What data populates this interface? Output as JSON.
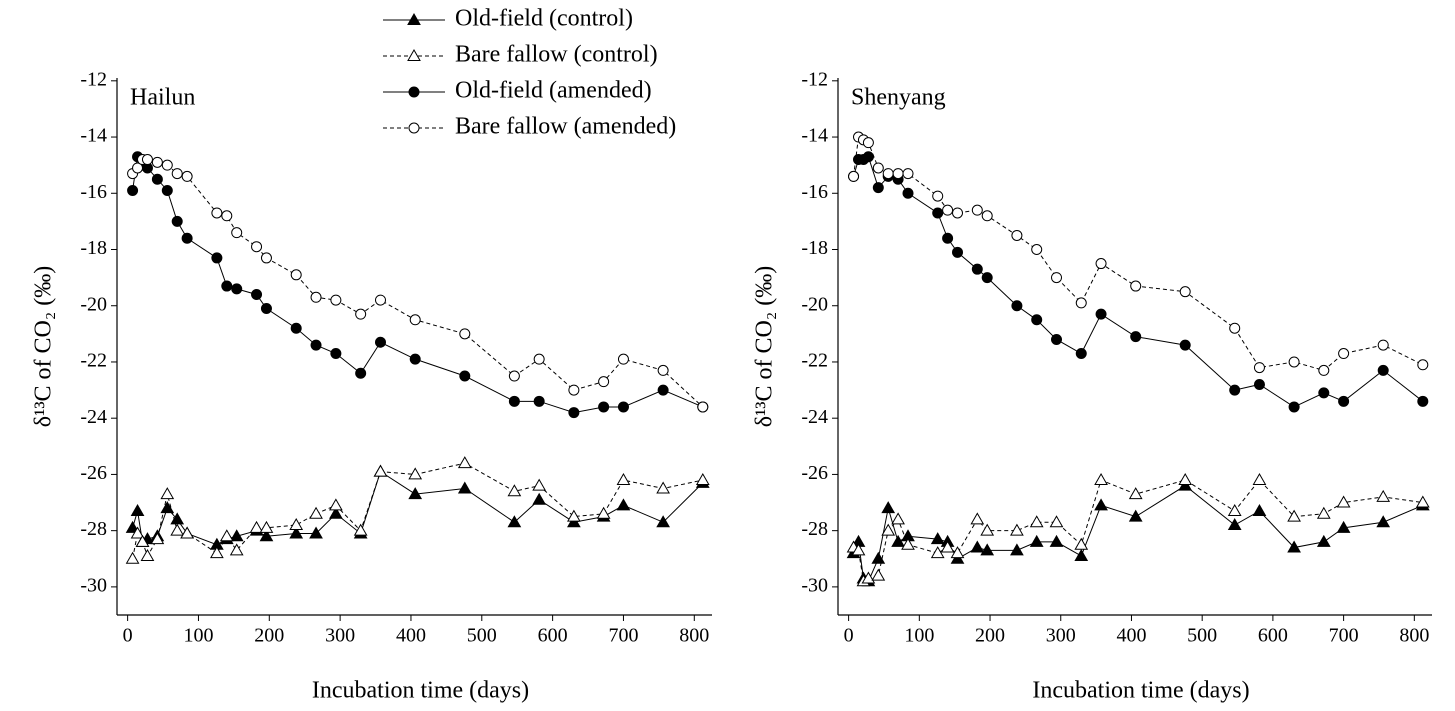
{
  "chart_data": [
    {
      "type": "line",
      "title": "Hailun",
      "x_label": "Incubation time (days)",
      "y_label": "δ¹³C of CO₂ (‰)",
      "legend": "top",
      "x": [
        7,
        14,
        21,
        28,
        42,
        56,
        70,
        84,
        126,
        140,
        154,
        182,
        196,
        238,
        266,
        294,
        329,
        357,
        406,
        476,
        546,
        581,
        630,
        672,
        700,
        756,
        812
      ],
      "xlim": [
        -15,
        825
      ],
      "xticks": [
        0,
        100,
        200,
        300,
        400,
        500,
        600,
        700,
        800
      ],
      "ylim": [
        -31,
        -11.9
      ],
      "yticks": [
        -30,
        -28,
        -26,
        -24,
        -22,
        -20,
        -18,
        -16,
        -14,
        -12
      ],
      "series": [
        {
          "name": "Old-field (control)",
          "color": "#000000",
          "marker": "triangle",
          "filled": true,
          "dashed": false,
          "values": [
            -27.9,
            -27.3,
            -28.4,
            -28.3,
            -28.2,
            -27.2,
            -27.6,
            -28.1,
            -28.5,
            -28.3,
            -28.2,
            -28.0,
            -28.2,
            -28.1,
            -28.1,
            -27.4,
            -28.1,
            -25.9,
            -26.7,
            -26.5,
            -27.7,
            -26.9,
            -27.7,
            -27.5,
            -27.1,
            -27.7,
            -26.3
          ]
        },
        {
          "name": "Bare fallow (control)",
          "color": "#000000",
          "marker": "triangle",
          "filled": false,
          "dashed": true,
          "values": [
            -29.0,
            -28.1,
            -28.4,
            -28.9,
            -28.3,
            -26.7,
            -28.0,
            -28.1,
            -28.8,
            -28.2,
            -28.7,
            -27.9,
            -27.9,
            -27.8,
            -27.4,
            -27.1,
            -28.0,
            -25.9,
            -26.0,
            -25.6,
            -26.6,
            -26.4,
            -27.5,
            -27.4,
            -26.2,
            -26.5,
            -26.2
          ]
        },
        {
          "name": "Old-field (amended)",
          "color": "#000000",
          "marker": "circle",
          "filled": true,
          "dashed": false,
          "values": [
            -15.9,
            -14.7,
            -15.0,
            -15.1,
            -15.5,
            -15.9,
            -17.0,
            -17.6,
            -18.3,
            -19.3,
            -19.4,
            -19.6,
            -20.1,
            -20.8,
            -21.4,
            -21.7,
            -22.4,
            -21.3,
            -21.9,
            -22.5,
            -23.4,
            -23.4,
            -23.8,
            -23.6,
            -23.6,
            -23.0,
            -23.6
          ]
        },
        {
          "name": "Bare fallow (amended)",
          "color": "#000000",
          "marker": "circle",
          "filled": false,
          "dashed": true,
          "values": [
            -15.3,
            -15.1,
            -14.8,
            -14.8,
            -14.9,
            -15.0,
            -15.3,
            -15.4,
            -16.7,
            -16.8,
            -17.4,
            -17.9,
            -18.3,
            -18.9,
            -19.7,
            -19.8,
            -20.3,
            -19.8,
            -20.5,
            -21.0,
            -22.5,
            -21.9,
            -23.0,
            -22.7,
            -21.9,
            -22.3,
            -23.6
          ]
        }
      ]
    },
    {
      "type": "line",
      "title": "Shenyang",
      "x_label": "Incubation time (days)",
      "y_label": "δ¹³C of CO₂ (‰)",
      "x": [
        7,
        14,
        21,
        28,
        42,
        56,
        70,
        84,
        126,
        140,
        154,
        182,
        196,
        238,
        266,
        294,
        329,
        357,
        406,
        476,
        546,
        581,
        630,
        672,
        700,
        756,
        812
      ],
      "xlim": [
        -15,
        825
      ],
      "xticks": [
        0,
        100,
        200,
        300,
        400,
        500,
        600,
        700,
        800
      ],
      "ylim": [
        -31,
        -11.9
      ],
      "yticks": [
        -30,
        -28,
        -26,
        -24,
        -22,
        -20,
        -18,
        -16,
        -14,
        -12
      ],
      "series": [
        {
          "color": "#000000",
          "marker": "triangle",
          "filled": true,
          "dashed": false,
          "values": [
            -28.8,
            -28.4,
            -29.7,
            -29.8,
            -29.0,
            -27.2,
            -28.4,
            -28.2,
            -28.3,
            -28.4,
            -29.0,
            -28.6,
            -28.7,
            -28.7,
            -28.4,
            -28.4,
            -28.9,
            -27.1,
            -27.5,
            -26.4,
            -27.8,
            -27.3,
            -28.6,
            -28.4,
            -27.9,
            -27.7,
            -27.1
          ]
        },
        {
          "color": "#000000",
          "marker": "triangle",
          "filled": false,
          "dashed": true,
          "values": [
            -28.6,
            -28.7,
            -29.8,
            -29.7,
            -29.6,
            -28.0,
            -27.6,
            -28.5,
            -28.8,
            -28.6,
            -28.8,
            -27.6,
            -28.0,
            -28.0,
            -27.7,
            -27.7,
            -28.5,
            -26.2,
            -26.7,
            -26.2,
            -27.3,
            -26.2,
            -27.5,
            -27.4,
            -27.0,
            -26.8,
            -27.0
          ]
        },
        {
          "color": "#000000",
          "marker": "circle",
          "filled": true,
          "dashed": false,
          "values": [
            -15.4,
            -14.8,
            -14.8,
            -14.7,
            -15.8,
            -15.4,
            -15.5,
            -16.0,
            -16.7,
            -17.6,
            -18.1,
            -18.7,
            -19.0,
            -20.0,
            -20.5,
            -21.2,
            -21.7,
            -20.3,
            -21.1,
            -21.4,
            -23.0,
            -22.8,
            -23.6,
            -23.1,
            -23.4,
            -22.3,
            -23.4
          ]
        },
        {
          "color": "#000000",
          "marker": "circle",
          "filled": false,
          "dashed": true,
          "values": [
            -15.4,
            -14.0,
            -14.1,
            -14.2,
            -15.1,
            -15.3,
            -15.3,
            -15.3,
            -16.1,
            -16.6,
            -16.7,
            -16.6,
            -16.8,
            -17.5,
            -18.0,
            -19.0,
            -19.9,
            -18.5,
            -19.3,
            -19.5,
            -20.8,
            -22.2,
            -22.0,
            -22.3,
            -21.7,
            -21.4,
            -22.1
          ]
        }
      ]
    }
  ]
}
